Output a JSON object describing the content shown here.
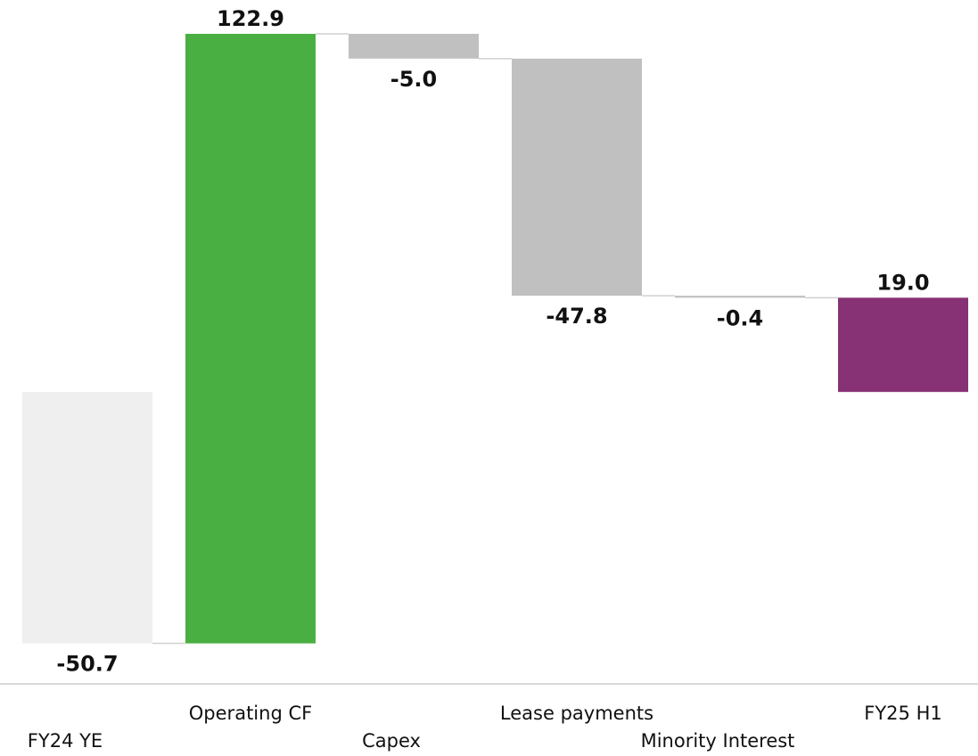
{
  "chart_data": {
    "type": "bar",
    "subtype": "waterfall",
    "categories": [
      "FY24 YE",
      "Operating CF",
      "Capex",
      "Lease payments",
      "Minority Interest",
      "FY25 H1"
    ],
    "values": [
      -50.7,
      122.9,
      -5.0,
      -47.8,
      -0.4,
      19.0
    ],
    "labels": [
      "-50.7",
      "122.9",
      "-5.0",
      "-47.8",
      "-0.4",
      "19.0"
    ],
    "kinds": [
      "total",
      "delta",
      "delta",
      "delta",
      "delta",
      "total"
    ],
    "colors": [
      "#efefef",
      "#4aaf42",
      "#c0c0c0",
      "#c0c0c0",
      "#c0c0c0",
      "#873274"
    ],
    "connector_color": "#d0d0d0",
    "axis_color": "#d9d9d9",
    "title": "",
    "xlabel": "",
    "ylabel": "",
    "grid": false,
    "legend": "none"
  }
}
